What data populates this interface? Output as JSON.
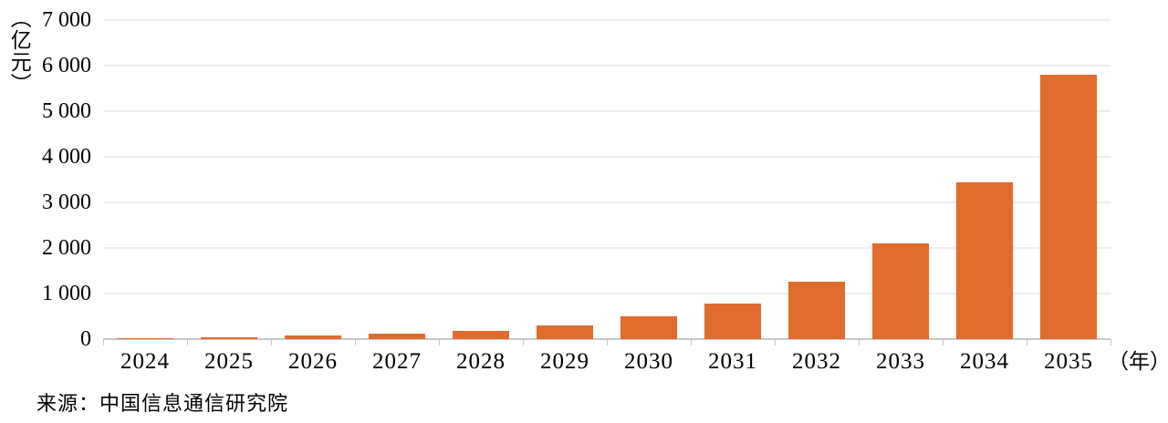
{
  "chart_data": {
    "type": "bar",
    "title": "",
    "categories": [
      "2024",
      "2025",
      "2026",
      "2027",
      "2028",
      "2029",
      "2030",
      "2031",
      "2032",
      "2033",
      "2034",
      "2035"
    ],
    "values": [
      20,
      50,
      80,
      120,
      180,
      300,
      500,
      780,
      1260,
      2100,
      3450,
      5800
    ],
    "ylim": [
      0,
      7000
    ],
    "ytick_values": [
      0,
      1000,
      2000,
      3000,
      4000,
      5000,
      6000,
      7000
    ],
    "ytick_labels": [
      "0",
      "1 000",
      "2 000",
      "3 000",
      "4 000",
      "5 000",
      "6 000",
      "7 000"
    ],
    "y_unit_label": "（亿元）",
    "x_unit_label": "（年）",
    "grid": true,
    "legend": "none",
    "bar_color": "#E06C2E",
    "gridline_color": "#DCDCDC",
    "axis_color": "#C8C8C8",
    "text_color": "#000000"
  },
  "source": "来源：中国信息通信研究院"
}
